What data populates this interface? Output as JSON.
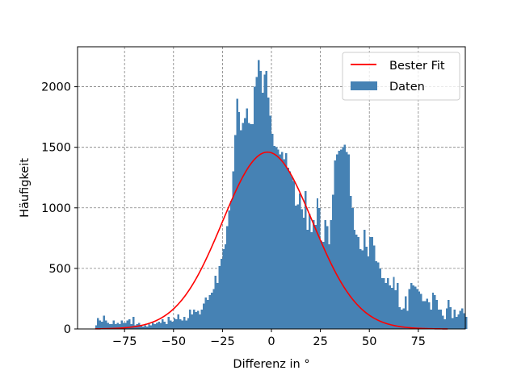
{
  "chart_data": {
    "type": "bar",
    "title": "",
    "xlabel": "Differenz in °",
    "ylabel": "Häufigkeit",
    "xlim": [
      -99,
      99
    ],
    "ylim": [
      0,
      2330
    ],
    "xticks": [
      -75,
      -50,
      -25,
      0,
      25,
      50,
      75
    ],
    "xtick_labels": [
      "−75",
      "−50",
      "−25",
      "0",
      "25",
      "50",
      "75"
    ],
    "yticks": [
      0,
      500,
      1000,
      1500,
      2000
    ],
    "ytick_labels": [
      "0",
      "500",
      "1000",
      "1500",
      "2000"
    ],
    "grid": true,
    "legend_position": "top-right",
    "bin_width": 1,
    "series": [
      {
        "name": "Daten",
        "kind": "histogram",
        "color": "#4682b4",
        "bin_start": -90,
        "values": [
          30,
          90,
          70,
          60,
          110,
          70,
          50,
          40,
          40,
          70,
          40,
          50,
          40,
          70,
          50,
          50,
          70,
          80,
          40,
          100,
          30,
          40,
          50,
          30,
          20,
          30,
          20,
          40,
          30,
          50,
          40,
          50,
          60,
          50,
          80,
          60,
          40,
          100,
          70,
          60,
          90,
          80,
          120,
          80,
          70,
          100,
          70,
          90,
          160,
          120,
          160,
          140,
          150,
          120,
          160,
          210,
          260,
          240,
          280,
          300,
          330,
          440,
          380,
          520,
          580,
          660,
          700,
          850,
          980,
          1060,
          1300,
          1600,
          1900,
          1790,
          1640,
          1700,
          1740,
          1820,
          1700,
          1690,
          1690,
          2000,
          2080,
          2220,
          2130,
          1950,
          2100,
          2130,
          1910,
          1760,
          1610,
          1510,
          1500,
          1480,
          1440,
          1460,
          1400,
          1450,
          1330,
          1300,
          1260,
          1220,
          1020,
          1030,
          1120,
          990,
          920,
          1140,
          820,
          950,
          800,
          900,
          860,
          1080,
          1000,
          730,
          720,
          900,
          850,
          700,
          900,
          1110,
          1390,
          1440,
          1470,
          1480,
          1500,
          1520,
          1460,
          1440,
          1100,
          1000,
          820,
          780,
          760,
          660,
          650,
          820,
          680,
          600,
          760,
          760,
          690,
          560,
          550,
          500,
          420,
          420,
          380,
          420,
          360,
          340,
          430,
          320,
          380,
          180,
          160,
          170,
          270,
          150,
          330,
          380,
          360,
          350,
          330,
          310,
          290,
          230,
          230,
          250,
          220,
          160,
          300,
          280,
          240,
          160,
          160,
          110,
          80,
          170,
          240,
          180,
          90,
          160,
          100,
          120,
          150,
          170,
          130,
          100
        ]
      },
      {
        "name": "Bester Fit",
        "kind": "gaussian-line",
        "color": "#ff0000",
        "x_range": [
          -90,
          90
        ],
        "amplitude": 1460,
        "mean": -2,
        "sigma": 23
      }
    ]
  }
}
